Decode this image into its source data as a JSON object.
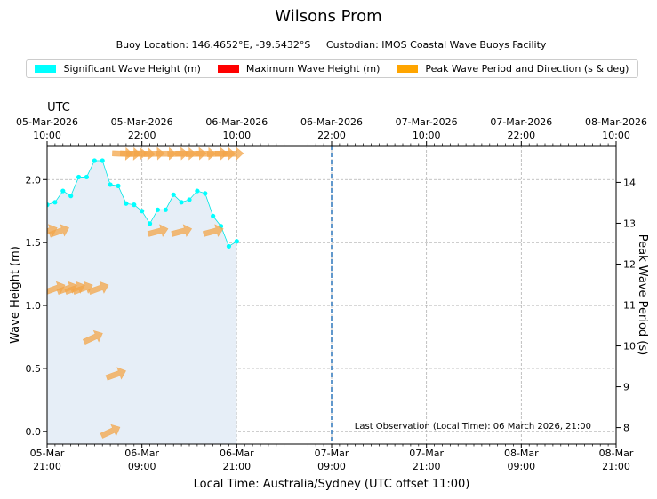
{
  "title": "Wilsons Prom",
  "subtitle": "Buoy Location: 146.4652°E, -39.5432°S     Custodian: IMOS Coastal Wave Buoys Facility",
  "legend": [
    {
      "label": "Significant Wave Height (m)",
      "color": "#00ffff"
    },
    {
      "label": "Maximum Wave Height (m)",
      "color": "#ff0000"
    },
    {
      "label": "Peak Wave Period and Direction (s & deg)",
      "color": "#ffa500"
    }
  ],
  "chart_data": {
    "type": "line",
    "title": "Wilsons Prom",
    "xlabel": "Local Time: Australia/Sydney (UTC offset 11:00)",
    "ylabel": "Wave Height (m)",
    "y2label": "Peak Wave Period (s)",
    "top_axis_label": "UTC",
    "x_range_hours": [
      0,
      72
    ],
    "ylim": [
      -0.1,
      2.27
    ],
    "y2lim": [
      7.6,
      14.9
    ],
    "yticks": [
      "0.0",
      "0.5",
      "1.0",
      "1.5",
      "2.0"
    ],
    "y2ticks": [
      "8",
      "9",
      "10",
      "11",
      "12",
      "13",
      "14"
    ],
    "bottom_ticks": [
      {
        "line1": "05-Mar",
        "line2": "21:00"
      },
      {
        "line1": "06-Mar",
        "line2": "09:00"
      },
      {
        "line1": "06-Mar",
        "line2": "21:00"
      },
      {
        "line1": "07-Mar",
        "line2": "09:00"
      },
      {
        "line1": "07-Mar",
        "line2": "21:00"
      },
      {
        "line1": "08-Mar",
        "line2": "09:00"
      },
      {
        "line1": "08-Mar",
        "line2": "21:00"
      }
    ],
    "top_ticks": [
      {
        "line1": "05-Mar-2026",
        "line2": "10:00"
      },
      {
        "line1": "05-Mar-2026",
        "line2": "22:00"
      },
      {
        "line1": "06-Mar-2026",
        "line2": "10:00"
      },
      {
        "line1": "06-Mar-2026",
        "line2": "22:00"
      },
      {
        "line1": "07-Mar-2026",
        "line2": "10:00"
      },
      {
        "line1": "07-Mar-2026",
        "line2": "22:00"
      },
      {
        "line1": "08-Mar-2026",
        "line2": "10:00"
      }
    ],
    "series": [
      {
        "name": "Significant Wave Height (m)",
        "color": "#00ffff",
        "hours": [
          0,
          1,
          2,
          3,
          4,
          5,
          6,
          7,
          8,
          9,
          10,
          11,
          12,
          13,
          14,
          15,
          16,
          17,
          18,
          19,
          20,
          21,
          22,
          23,
          24
        ],
        "values": [
          1.8,
          1.82,
          1.91,
          1.87,
          2.02,
          2.02,
          2.15,
          2.15,
          1.96,
          1.95,
          1.81,
          1.8,
          1.75,
          1.65,
          1.76,
          1.76,
          1.88,
          1.82,
          1.84,
          1.91,
          1.89,
          1.71,
          1.63,
          1.47,
          1.51
        ]
      },
      {
        "name": "Peak Wave Period and Direction (s & deg)",
        "color": "#ffa500",
        "points": [
          {
            "hour": 0.0,
            "period": 12.8,
            "dir": 250
          },
          {
            "hour": 1.5,
            "period": 12.8,
            "dir": 250
          },
          {
            "hour": 1.0,
            "period": 11.4,
            "dir": 250
          },
          {
            "hour": 2.5,
            "period": 11.4,
            "dir": 250
          },
          {
            "hour": 3.5,
            "period": 11.4,
            "dir": 250
          },
          {
            "hour": 4.5,
            "period": 11.4,
            "dir": 250
          },
          {
            "hour": 6.5,
            "period": 11.4,
            "dir": 250
          },
          {
            "hour": 5.8,
            "period": 10.2,
            "dir": 245
          },
          {
            "hour": 8.7,
            "period": 9.3,
            "dir": 250
          },
          {
            "hour": 8.0,
            "period": 7.9,
            "dir": 245
          },
          {
            "hour": 9.5,
            "period": 14.7,
            "dir": 272
          },
          {
            "hour": 10.5,
            "period": 14.7,
            "dir": 272
          },
          {
            "hour": 11.3,
            "period": 14.7,
            "dir": 268
          },
          {
            "hour": 12.3,
            "period": 14.7,
            "dir": 272
          },
          {
            "hour": 13.5,
            "period": 14.7,
            "dir": 268
          },
          {
            "hour": 15.0,
            "period": 14.7,
            "dir": 270
          },
          {
            "hour": 16.5,
            "period": 14.7,
            "dir": 268
          },
          {
            "hour": 17.5,
            "period": 14.7,
            "dir": 270
          },
          {
            "hour": 18.8,
            "period": 14.7,
            "dir": 268
          },
          {
            "hour": 20.0,
            "period": 14.7,
            "dir": 270
          },
          {
            "hour": 21.5,
            "period": 14.7,
            "dir": 268
          },
          {
            "hour": 22.5,
            "period": 14.7,
            "dir": 270
          },
          {
            "hour": 23.5,
            "period": 14.7,
            "dir": 268
          },
          {
            "hour": 14.0,
            "period": 12.8,
            "dir": 255
          },
          {
            "hour": 17.0,
            "period": 12.8,
            "dir": 255
          },
          {
            "hour": 21.0,
            "period": 12.8,
            "dir": 255
          }
        ]
      }
    ],
    "now_marker_hour": 36,
    "annotation": "Last Observation (Local Time): 06 March 2026, 21:00"
  }
}
